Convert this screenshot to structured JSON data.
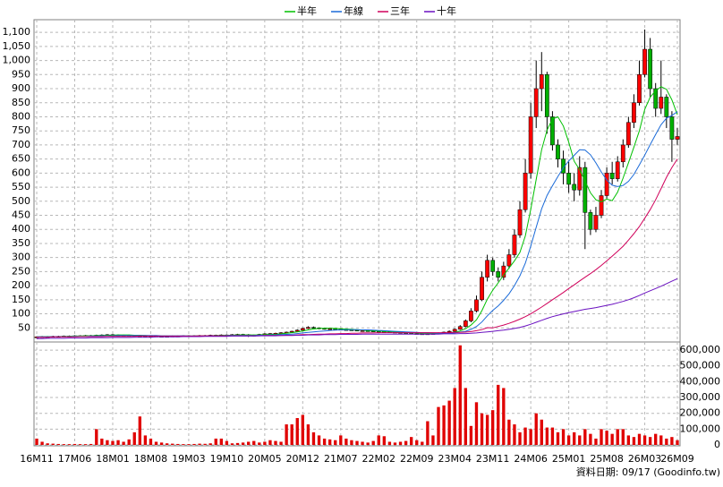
{
  "chart_data": {
    "type": "candlestick",
    "categories": [
      "16M11",
      null,
      null,
      null,
      null,
      null,
      null,
      "17M06",
      null,
      null,
      null,
      null,
      null,
      null,
      "18M01",
      null,
      null,
      null,
      null,
      null,
      null,
      "18M08",
      null,
      null,
      null,
      null,
      null,
      null,
      "19M03",
      null,
      null,
      null,
      null,
      null,
      null,
      "19M10",
      null,
      null,
      null,
      null,
      null,
      null,
      "20M05",
      null,
      null,
      null,
      null,
      null,
      null,
      "20M12",
      null,
      null,
      null,
      null,
      null,
      null,
      "21M07",
      null,
      null,
      null,
      null,
      null,
      null,
      "22M02",
      null,
      null,
      null,
      null,
      null,
      null,
      "22M09",
      null,
      null,
      null,
      null,
      null,
      null,
      "23M04",
      null,
      null,
      null,
      null,
      null,
      null,
      "23M11",
      null,
      null,
      null,
      null,
      null,
      null,
      "24M06",
      null,
      null,
      null,
      null,
      null,
      null,
      "25M01",
      null,
      null,
      null,
      null,
      null,
      null,
      "25M08",
      null,
      null,
      null,
      null,
      null,
      null,
      "26M03",
      null,
      null,
      null,
      null,
      null,
      "26M09"
    ],
    "open": [
      17,
      18,
      19,
      19,
      20,
      20,
      21,
      21,
      22,
      22,
      23,
      23,
      24,
      25,
      26,
      25,
      24,
      24,
      23,
      22,
      22,
      21,
      21,
      20,
      20,
      20,
      21,
      21,
      22,
      22,
      22,
      23,
      23,
      24,
      24,
      25,
      25,
      26,
      27,
      26,
      22,
      24,
      27,
      29,
      30,
      31,
      33,
      35,
      38,
      42,
      48,
      52,
      50,
      48,
      46,
      47,
      45,
      44,
      43,
      42,
      40,
      40,
      39,
      38,
      37,
      36,
      35,
      34,
      33,
      32,
      30,
      29,
      28,
      29,
      30,
      32,
      35,
      38,
      45,
      55,
      75,
      110,
      150,
      230,
      290,
      250,
      230,
      270,
      310,
      380,
      470,
      600,
      800,
      900,
      950,
      800,
      700,
      650,
      600,
      560,
      540,
      620,
      460,
      400,
      450,
      520,
      600,
      580,
      640,
      700,
      780,
      850,
      950,
      1040,
      900,
      830,
      870,
      800,
      720
    ],
    "high": [
      20,
      21,
      21,
      22,
      22,
      23,
      23,
      24,
      24,
      25,
      25,
      26,
      27,
      28,
      28,
      27,
      26,
      26,
      25,
      24,
      24,
      23,
      23,
      22,
      22,
      23,
      23,
      24,
      24,
      24,
      25,
      25,
      26,
      26,
      27,
      27,
      28,
      29,
      29,
      28,
      26,
      29,
      31,
      32,
      33,
      35,
      37,
      40,
      45,
      51,
      56,
      55,
      52,
      50,
      50,
      49,
      47,
      46,
      45,
      44,
      42,
      42,
      41,
      40,
      39,
      38,
      37,
      36,
      35,
      34,
      32,
      31,
      31,
      32,
      34,
      37,
      41,
      48,
      60,
      80,
      120,
      165,
      250,
      310,
      300,
      265,
      285,
      330,
      400,
      500,
      650,
      850,
      1000,
      1030,
      960,
      820,
      720,
      680,
      640,
      600,
      660,
      640,
      470,
      480,
      540,
      620,
      640,
      660,
      720,
      800,
      880,
      1000,
      1110,
      1080,
      920,
      1000,
      880,
      820,
      760
    ],
    "low": [
      15,
      16,
      17,
      17,
      18,
      18,
      19,
      19,
      20,
      20,
      21,
      21,
      22,
      23,
      23,
      22,
      22,
      21,
      20,
      20,
      19,
      19,
      18,
      18,
      18,
      18,
      19,
      19,
      20,
      20,
      20,
      21,
      21,
      22,
      22,
      23,
      23,
      24,
      24,
      18,
      20,
      22,
      25,
      27,
      28,
      29,
      31,
      33,
      36,
      40,
      46,
      47,
      45,
      44,
      44,
      43,
      42,
      41,
      40,
      38,
      38,
      37,
      36,
      35,
      34,
      33,
      32,
      31,
      30,
      28,
      27,
      26,
      26,
      27,
      28,
      30,
      33,
      36,
      43,
      52,
      70,
      105,
      145,
      215,
      235,
      215,
      220,
      260,
      300,
      370,
      460,
      580,
      760,
      820,
      740,
      680,
      620,
      560,
      530,
      500,
      520,
      330,
      380,
      390,
      440,
      510,
      560,
      570,
      620,
      690,
      760,
      840,
      940,
      870,
      800,
      810,
      760,
      640,
      700
    ],
    "close": [
      18,
      19,
      19,
      20,
      20,
      21,
      21,
      22,
      22,
      23,
      23,
      24,
      25,
      26,
      25,
      24,
      24,
      23,
      22,
      22,
      21,
      21,
      20,
      20,
      20,
      21,
      21,
      22,
      22,
      22,
      23,
      23,
      24,
      24,
      25,
      25,
      26,
      27,
      26,
      22,
      24,
      27,
      29,
      30,
      31,
      33,
      35,
      38,
      42,
      48,
      52,
      50,
      48,
      46,
      47,
      45,
      44,
      43,
      42,
      40,
      40,
      39,
      38,
      37,
      36,
      35,
      34,
      33,
      32,
      30,
      29,
      28,
      29,
      30,
      32,
      35,
      38,
      45,
      55,
      75,
      110,
      150,
      230,
      290,
      250,
      230,
      270,
      310,
      380,
      470,
      600,
      800,
      900,
      950,
      800,
      700,
      650,
      600,
      560,
      540,
      620,
      460,
      400,
      450,
      520,
      600,
      580,
      640,
      700,
      780,
      850,
      950,
      1040,
      900,
      830,
      870,
      800,
      720,
      730
    ],
    "volume": [
      40000,
      20000,
      10000,
      8000,
      6000,
      5000,
      5000,
      6000,
      5000,
      5000,
      6000,
      100000,
      40000,
      30000,
      25000,
      30000,
      20000,
      35000,
      80000,
      180000,
      60000,
      40000,
      20000,
      15000,
      10000,
      8000,
      6000,
      5000,
      5000,
      6000,
      8000,
      7000,
      10000,
      40000,
      40000,
      25000,
      10000,
      12000,
      15000,
      20000,
      25000,
      15000,
      20000,
      30000,
      25000,
      20000,
      130000,
      130000,
      170000,
      190000,
      130000,
      80000,
      60000,
      40000,
      35000,
      30000,
      60000,
      40000,
      30000,
      25000,
      20000,
      15000,
      25000,
      60000,
      55000,
      20000,
      15000,
      20000,
      25000,
      50000,
      30000,
      20000,
      150000,
      60000,
      240000,
      250000,
      280000,
      360000,
      630000,
      360000,
      120000,
      270000,
      200000,
      190000,
      220000,
      380000,
      360000,
      160000,
      130000,
      80000,
      110000,
      100000,
      200000,
      160000,
      110000,
      110000,
      80000,
      100000,
      60000,
      80000,
      60000,
      100000,
      70000,
      40000,
      100000,
      90000,
      70000,
      100000,
      100000,
      60000,
      50000,
      70000,
      60000,
      50000,
      70000,
      60000,
      40000,
      50000,
      30000
    ],
    "series": [
      {
        "name": "半年",
        "color": "#00c000",
        "values": [
          18,
          18,
          19,
          19,
          19,
          20,
          20,
          21,
          21,
          22,
          22,
          23,
          23,
          24,
          24,
          25,
          25,
          25,
          24,
          24,
          23,
          22,
          22,
          21,
          21,
          20,
          20,
          21,
          21,
          21,
          22,
          22,
          22,
          23,
          23,
          24,
          24,
          25,
          25,
          25,
          25,
          25,
          26,
          27,
          27,
          29,
          31,
          33,
          36,
          39,
          43,
          46,
          48,
          49,
          49,
          48,
          47,
          46,
          45,
          44,
          42,
          41,
          40,
          39,
          38,
          37,
          36,
          35,
          34,
          33,
          32,
          30,
          30,
          30,
          30,
          31,
          32,
          35,
          39,
          47,
          60,
          79,
          111,
          152,
          184,
          210,
          237,
          263,
          288,
          318,
          377,
          472,
          577,
          683,
          753,
          792,
          800,
          767,
          710,
          642,
          612,
          572,
          530,
          505,
          498,
          508,
          502,
          532,
          582,
          637,
          692,
          750,
          827,
          870,
          892,
          907,
          898,
          860,
          808
        ]
      },
      {
        "name": "年線",
        "color": "#1a6ad8",
        "values": [
          18,
          18,
          18,
          19,
          19,
          19,
          19,
          20,
          20,
          20,
          21,
          21,
          22,
          22,
          22,
          23,
          23,
          23,
          23,
          23,
          23,
          23,
          23,
          22,
          22,
          22,
          22,
          22,
          21,
          21,
          21,
          21,
          22,
          22,
          22,
          23,
          23,
          23,
          23,
          23,
          23,
          24,
          24,
          25,
          25,
          26,
          27,
          28,
          30,
          32,
          34,
          36,
          38,
          39,
          41,
          42,
          43,
          44,
          44,
          44,
          43,
          43,
          42,
          41,
          40,
          39,
          38,
          37,
          36,
          35,
          34,
          33,
          33,
          32,
          31,
          31,
          31,
          32,
          35,
          38,
          45,
          55,
          71,
          93,
          112,
          128,
          148,
          171,
          200,
          235,
          280,
          341,
          407,
          473,
          521,
          555,
          588,
          619,
          643,
          663,
          683,
          682,
          665,
          636,
          604,
          575,
          557,
          552,
          556,
          571,
          595,
          629,
          664,
          701,
          737,
          772,
          795,
          805,
          818
        ]
      },
      {
        "name": "三年",
        "color": "#d0005a",
        "values": [
          17,
          17,
          17,
          18,
          18,
          18,
          18,
          18,
          19,
          19,
          19,
          19,
          19,
          20,
          20,
          20,
          20,
          20,
          20,
          21,
          21,
          21,
          21,
          21,
          21,
          21,
          21,
          21,
          21,
          21,
          22,
          22,
          22,
          22,
          22,
          22,
          22,
          22,
          22,
          22,
          22,
          22,
          23,
          23,
          23,
          23,
          24,
          24,
          25,
          26,
          26,
          27,
          28,
          28,
          29,
          29,
          30,
          30,
          31,
          31,
          32,
          32,
          32,
          33,
          33,
          33,
          33,
          33,
          33,
          33,
          33,
          33,
          33,
          33,
          33,
          33,
          33,
          34,
          34,
          35,
          37,
          40,
          44,
          51,
          50,
          55,
          60,
          66,
          73,
          81,
          90,
          100,
          112,
          124,
          137,
          150,
          163,
          176,
          190,
          203,
          217,
          230,
          243,
          257,
          272,
          288,
          305,
          322,
          340,
          362,
          385,
          410,
          440,
          470,
          505,
          545,
          585,
          620,
          650
        ]
      },
      {
        "name": "十年",
        "color": "#6a10c0",
        "values": [
          12,
          12,
          13,
          13,
          13,
          13,
          14,
          14,
          14,
          14,
          15,
          15,
          15,
          15,
          16,
          16,
          16,
          16,
          17,
          17,
          17,
          17,
          18,
          18,
          18,
          18,
          18,
          19,
          19,
          19,
          19,
          20,
          20,
          20,
          20,
          20,
          21,
          21,
          21,
          21,
          21,
          22,
          22,
          22,
          22,
          23,
          23,
          23,
          24,
          24,
          25,
          25,
          25,
          26,
          26,
          26,
          27,
          27,
          27,
          27,
          28,
          28,
          28,
          28,
          28,
          28,
          28,
          28,
          28,
          28,
          28,
          28,
          28,
          28,
          28,
          29,
          29,
          29,
          30,
          30,
          31,
          32,
          34,
          36,
          38,
          40,
          42,
          45,
          48,
          52,
          57,
          63,
          70,
          77,
          84,
          90,
          95,
          100,
          104,
          108,
          112,
          116,
          119,
          122,
          126,
          130,
          134,
          139,
          144,
          150,
          157,
          165,
          174,
          182,
          190,
          198,
          207,
          216,
          225
        ]
      }
    ],
    "ylim": [
      0,
      1145
    ],
    "yticks": [
      50,
      100,
      150,
      200,
      250,
      300,
      350,
      400,
      450,
      500,
      550,
      600,
      650,
      700,
      750,
      800,
      850,
      900,
      950,
      {
        "value": 1000,
        "label": "1,000"
      },
      {
        "value": 1050,
        "label": "1,050"
      },
      {
        "value": 1100,
        "label": "1,100"
      }
    ],
    "volume_ylim": [
      0,
      640000
    ],
    "volume_yticks": [
      0,
      {
        "value": 100000,
        "label": "100,000"
      },
      {
        "value": 200000,
        "label": "200,000"
      },
      {
        "value": 300000,
        "label": "300,000"
      },
      {
        "value": 400000,
        "label": "400,000"
      },
      {
        "value": 500000,
        "label": "500,000"
      },
      {
        "value": 600000,
        "label": "600,000"
      }
    ],
    "up_color": "#ff0000",
    "down_color": "#00b000",
    "volume_color": "#e00000",
    "grid": true,
    "footer": "資料日期: 09/17  (Goodinfo.tw)"
  }
}
